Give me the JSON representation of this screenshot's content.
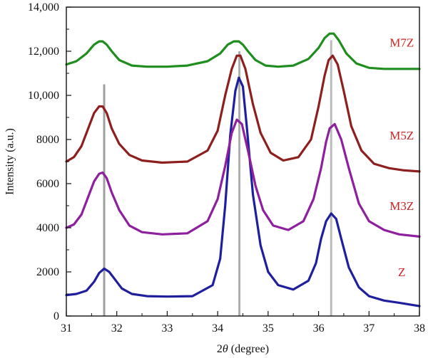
{
  "chart_data": {
    "type": "line",
    "xlabel": "2θ (degree)",
    "ylabel": "Intensity (a.u.)",
    "xlim": [
      31,
      38
    ],
    "ylim": [
      0,
      14000
    ],
    "x_ticks": [
      31,
      32,
      33,
      34,
      35,
      36,
      37,
      38
    ],
    "x_tick_labels": [
      "31",
      "32",
      "33",
      "34",
      "35",
      "36",
      "37",
      "38"
    ],
    "y_ticks": [
      0,
      2000,
      4000,
      6000,
      8000,
      10000,
      12000,
      14000
    ],
    "y_tick_labels": [
      "0",
      "2000",
      "4000",
      "6000",
      "8000",
      "10,000",
      "12,000",
      "14,000"
    ],
    "grid": false,
    "legend": "inline labels at right",
    "label_color": "#cc2222",
    "reference_lines": [
      {
        "x": 31.75,
        "y": [
          0,
          10500
        ],
        "color": "#888888"
      },
      {
        "x": 34.43,
        "y": [
          0,
          12000
        ],
        "color": "#9a9a9a"
      },
      {
        "x": 36.25,
        "y": [
          0,
          12500
        ],
        "color": "#aaaaaa"
      }
    ],
    "series": [
      {
        "name": "Z",
        "label_x": 37.65,
        "label_y": 2000,
        "color": "#1f1f9e",
        "x": [
          31.0,
          31.2,
          31.4,
          31.55,
          31.65,
          31.75,
          31.85,
          31.95,
          32.1,
          32.3,
          32.6,
          33.0,
          33.5,
          33.9,
          34.05,
          34.15,
          34.25,
          34.35,
          34.42,
          34.5,
          34.58,
          34.7,
          34.85,
          35.0,
          35.2,
          35.5,
          35.8,
          35.95,
          36.05,
          36.15,
          36.25,
          36.35,
          36.45,
          36.6,
          36.8,
          37.0,
          37.3,
          37.6,
          38.0
        ],
        "y": [
          950,
          1000,
          1150,
          1550,
          1950,
          2150,
          2000,
          1700,
          1250,
          1000,
          900,
          880,
          900,
          1400,
          2600,
          5000,
          8200,
          10200,
          10800,
          10400,
          8500,
          5500,
          3200,
          2000,
          1400,
          1200,
          1600,
          2400,
          3500,
          4300,
          4650,
          4400,
          3500,
          2200,
          1300,
          900,
          700,
          600,
          450
        ]
      },
      {
        "name": "M3Z",
        "label_x": 37.65,
        "label_y": 5000,
        "color": "#8e1f9e",
        "x": [
          31.0,
          31.15,
          31.3,
          31.45,
          31.55,
          31.65,
          31.72,
          31.8,
          31.9,
          32.05,
          32.25,
          32.5,
          32.9,
          33.4,
          33.8,
          34.0,
          34.15,
          34.28,
          34.38,
          34.48,
          34.6,
          34.75,
          34.9,
          35.1,
          35.4,
          35.7,
          35.9,
          36.05,
          36.15,
          36.22,
          36.32,
          36.45,
          36.6,
          36.8,
          37.0,
          37.3,
          37.6,
          38.0
        ],
        "y": [
          4000,
          4150,
          4600,
          5500,
          6100,
          6450,
          6500,
          6250,
          5600,
          4800,
          4100,
          3800,
          3700,
          3750,
          4300,
          5300,
          6800,
          8300,
          8900,
          8700,
          7500,
          5900,
          4800,
          4100,
          3900,
          4300,
          5300,
          6700,
          7900,
          8500,
          8700,
          8000,
          6700,
          5100,
          4300,
          3900,
          3700,
          3600
        ]
      },
      {
        "name": "M5Z",
        "label_x": 37.65,
        "label_y": 8200,
        "color": "#8e1f1f",
        "x": [
          31.0,
          31.15,
          31.3,
          31.45,
          31.55,
          31.65,
          31.72,
          31.8,
          31.9,
          32.05,
          32.25,
          32.5,
          32.9,
          33.4,
          33.8,
          34.0,
          34.15,
          34.28,
          34.38,
          34.45,
          34.55,
          34.7,
          34.85,
          35.05,
          35.3,
          35.6,
          35.85,
          36.0,
          36.12,
          36.2,
          36.28,
          36.38,
          36.5,
          36.65,
          36.85,
          37.1,
          37.4,
          37.7,
          38.0
        ],
        "y": [
          7000,
          7200,
          7700,
          8600,
          9200,
          9500,
          9500,
          9200,
          8500,
          7800,
          7300,
          7050,
          6950,
          7000,
          7500,
          8400,
          10000,
          11200,
          11800,
          11800,
          11200,
          9600,
          8300,
          7400,
          7050,
          7200,
          8000,
          9500,
          10900,
          11600,
          11800,
          11400,
          10200,
          8600,
          7500,
          6900,
          6700,
          6600,
          6550
        ]
      },
      {
        "name": "M7Z",
        "label_x": 37.65,
        "label_y": 12400,
        "color": "#1f8e1f",
        "x": [
          31.0,
          31.2,
          31.4,
          31.55,
          31.65,
          31.72,
          31.8,
          31.9,
          32.05,
          32.3,
          32.6,
          33.0,
          33.4,
          33.8,
          34.05,
          34.2,
          34.32,
          34.42,
          34.5,
          34.6,
          34.75,
          34.95,
          35.2,
          35.5,
          35.8,
          36.0,
          36.12,
          36.22,
          36.3,
          36.4,
          36.55,
          36.75,
          37.0,
          37.3,
          37.6,
          38.0
        ],
        "y": [
          11400,
          11550,
          11900,
          12300,
          12450,
          12450,
          12300,
          12000,
          11600,
          11350,
          11300,
          11300,
          11350,
          11550,
          11900,
          12300,
          12450,
          12450,
          12300,
          12000,
          11600,
          11350,
          11300,
          11350,
          11650,
          12150,
          12600,
          12800,
          12800,
          12500,
          11900,
          11450,
          11250,
          11200,
          11200,
          11200
        ]
      }
    ]
  }
}
